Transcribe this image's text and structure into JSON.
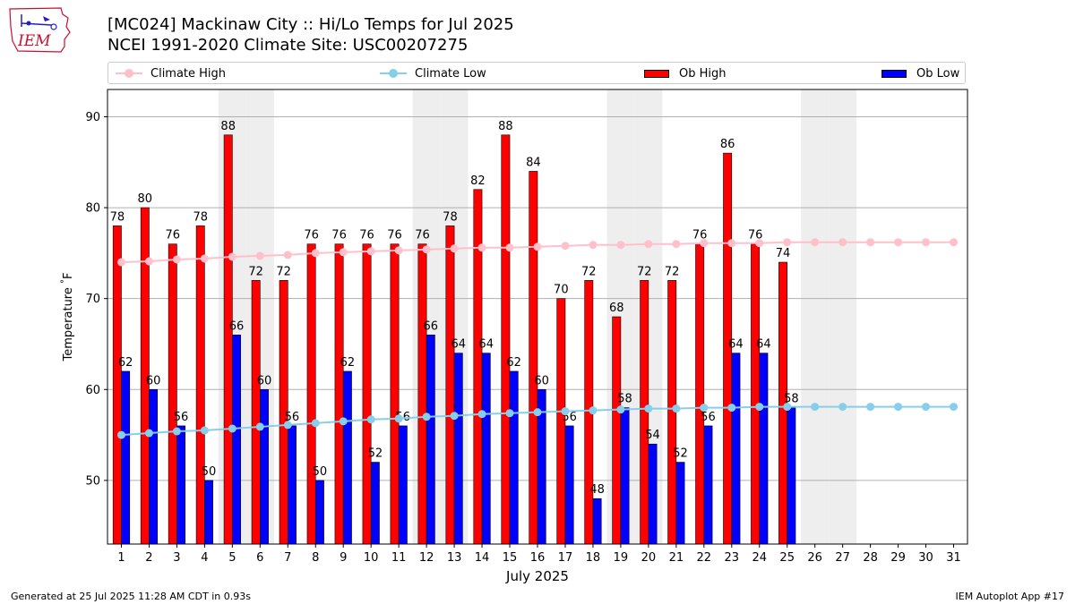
{
  "logo": {
    "text": "IEM"
  },
  "header": {
    "title_line1": "[MC024] Mackinaw City  :: Hi/Lo Temps for Jul 2025",
    "title_line2": "NCEI 1991-2020 Climate Site: USC00207275"
  },
  "footer": {
    "left": "Generated at 25 Jul 2025 11:28 AM CDT in 0.93s",
    "right": "IEM Autoplot App #17"
  },
  "chart_data": {
    "type": "bar",
    "title": "[MC024] Mackinaw City  :: Hi/Lo Temps for Jul 2025",
    "subtitle": "NCEI 1991-2020 Climate Site: USC00207275",
    "xlabel": "July 2025",
    "ylabel": "Temperature $^\\circ$F",
    "ylim": [
      43,
      93
    ],
    "xlim": [
      0.5,
      31.5
    ],
    "yticks": [
      50,
      60,
      70,
      80,
      90
    ],
    "grid": "horizontal",
    "legend_position": "top",
    "categories": [
      "1",
      "2",
      "3",
      "4",
      "5",
      "6",
      "7",
      "8",
      "9",
      "10",
      "11",
      "12",
      "13",
      "14",
      "15",
      "16",
      "17",
      "18",
      "19",
      "20",
      "21",
      "22",
      "23",
      "24",
      "25",
      "26",
      "27",
      "28",
      "29",
      "30",
      "31"
    ],
    "weekend_days": [
      5,
      6,
      12,
      13,
      19,
      20,
      26,
      27
    ],
    "series": [
      {
        "name": "Climate High",
        "kind": "line",
        "color": "#ffc0cb",
        "values": [
          74.0,
          74.1,
          74.3,
          74.4,
          74.6,
          74.7,
          74.8,
          75.0,
          75.1,
          75.2,
          75.3,
          75.4,
          75.5,
          75.6,
          75.6,
          75.7,
          75.8,
          75.9,
          75.9,
          76.0,
          76.0,
          76.1,
          76.1,
          76.1,
          76.2,
          76.2,
          76.2,
          76.2,
          76.2,
          76.2,
          76.2
        ]
      },
      {
        "name": "Climate Low",
        "kind": "line",
        "color": "#87ceeb",
        "values": [
          55.0,
          55.2,
          55.4,
          55.5,
          55.7,
          55.9,
          56.1,
          56.3,
          56.5,
          56.7,
          56.8,
          57.0,
          57.1,
          57.3,
          57.4,
          57.5,
          57.6,
          57.7,
          57.8,
          57.9,
          57.9,
          58.0,
          58.0,
          58.1,
          58.1,
          58.1,
          58.1,
          58.1,
          58.1,
          58.1,
          58.1
        ]
      },
      {
        "name": "Ob High",
        "kind": "bar",
        "color": "#ff0000",
        "values": [
          78,
          80,
          76,
          78,
          88,
          72,
          72,
          76,
          76,
          76,
          76,
          76,
          78,
          82,
          88,
          84,
          70,
          72,
          68,
          72,
          72,
          76,
          86,
          76,
          74,
          null,
          null,
          null,
          null,
          null,
          null
        ]
      },
      {
        "name": "Ob Low",
        "kind": "bar",
        "color": "#0000ff",
        "values": [
          62,
          60,
          56,
          50,
          66,
          60,
          56,
          50,
          62,
          52,
          56,
          66,
          64,
          64,
          62,
          60,
          56,
          48,
          58,
          54,
          52,
          56,
          64,
          64,
          58,
          null,
          null,
          null,
          null,
          null,
          null
        ]
      }
    ]
  }
}
